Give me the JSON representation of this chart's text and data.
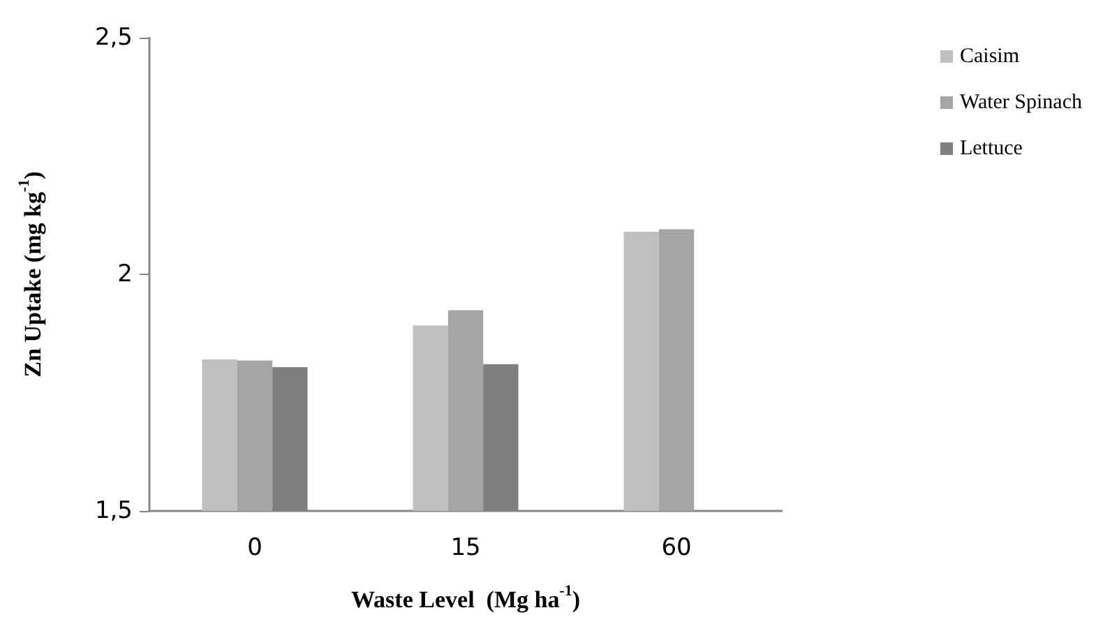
{
  "chart_data": {
    "type": "bar",
    "xlabel": "Waste Level  (Mg ha$^{-1}$)",
    "ylabel": "Zn Uptake (mg kg$^{-1}$)",
    "categories": [
      "0",
      "15",
      "60"
    ],
    "series": [
      {
        "name": "Caisim",
        "color": "#bfbfbf",
        "values": [
          1.82,
          1.892,
          2.09
        ]
      },
      {
        "name": "Water Spinach",
        "color": "#a5a5a5",
        "values": [
          1.818,
          1.924,
          2.095
        ]
      },
      {
        "name": "Lettuce",
        "color": "#7f7f7f",
        "values": [
          1.804,
          1.81,
          null
        ]
      }
    ],
    "ylim": [
      1.5,
      2.5
    ],
    "yticks": [
      {
        "value": 1.5,
        "label": "1,5"
      },
      {
        "value": 2,
        "label": "2"
      },
      {
        "value": 2.5,
        "label": "2,5"
      }
    ],
    "grid": false,
    "legend": "right"
  }
}
